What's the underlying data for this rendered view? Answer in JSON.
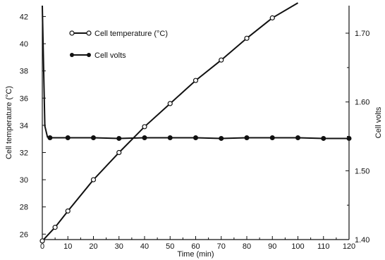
{
  "chart_data": {
    "type": "line",
    "x": [
      0,
      5,
      10,
      20,
      30,
      40,
      50,
      60,
      70,
      80,
      90,
      100,
      110,
      120
    ],
    "xlabel": "Time (min)",
    "x_ticks": [
      "0",
      "10",
      "20",
      "30",
      "40",
      "50",
      "60",
      "70",
      "80",
      "90",
      "100",
      "110",
      "120"
    ],
    "xlim": [
      0,
      120
    ],
    "ylabel_left": "Cell temperature (°C)",
    "ylim_left": [
      25.6,
      42.8
    ],
    "y_ticks_left": [
      "26",
      "28",
      "30",
      "32",
      "34",
      "36",
      "38",
      "40",
      "42"
    ],
    "ylabel_right": "Cell volts",
    "ylim_right": [
      1.4,
      1.74
    ],
    "y_ticks_right": [
      "1.40",
      "1.50",
      "1.60",
      "1.70"
    ],
    "legend_position": "top-left",
    "series": [
      {
        "name": "Cell temperature (°C)",
        "axis": "left",
        "marker": "open-circle",
        "points": [
          [
            0,
            25.5
          ],
          [
            5,
            26.5
          ],
          [
            10,
            27.7
          ],
          [
            20,
            30.0
          ],
          [
            30,
            32.0
          ],
          [
            40,
            33.9
          ],
          [
            50,
            35.6
          ],
          [
            60,
            37.3
          ],
          [
            70,
            38.8
          ],
          [
            80,
            40.4
          ],
          [
            90,
            41.9
          ]
        ],
        "line_extends_to": [
          100,
          43.0
        ]
      },
      {
        "name": "Cell volts",
        "axis": "right",
        "marker": "filled-circle",
        "initial_spike": [
          [
            0,
            1.8
          ],
          [
            1,
            1.565
          ],
          [
            2,
            1.549
          ]
        ],
        "points": [
          [
            3,
            1.548
          ],
          [
            10,
            1.548
          ],
          [
            20,
            1.548
          ],
          [
            30,
            1.547
          ],
          [
            40,
            1.548
          ],
          [
            50,
            1.548
          ],
          [
            60,
            1.548
          ],
          [
            70,
            1.547
          ],
          [
            80,
            1.548
          ],
          [
            90,
            1.548
          ],
          [
            100,
            1.548
          ],
          [
            110,
            1.547
          ],
          [
            120,
            1.547
          ]
        ]
      }
    ]
  }
}
